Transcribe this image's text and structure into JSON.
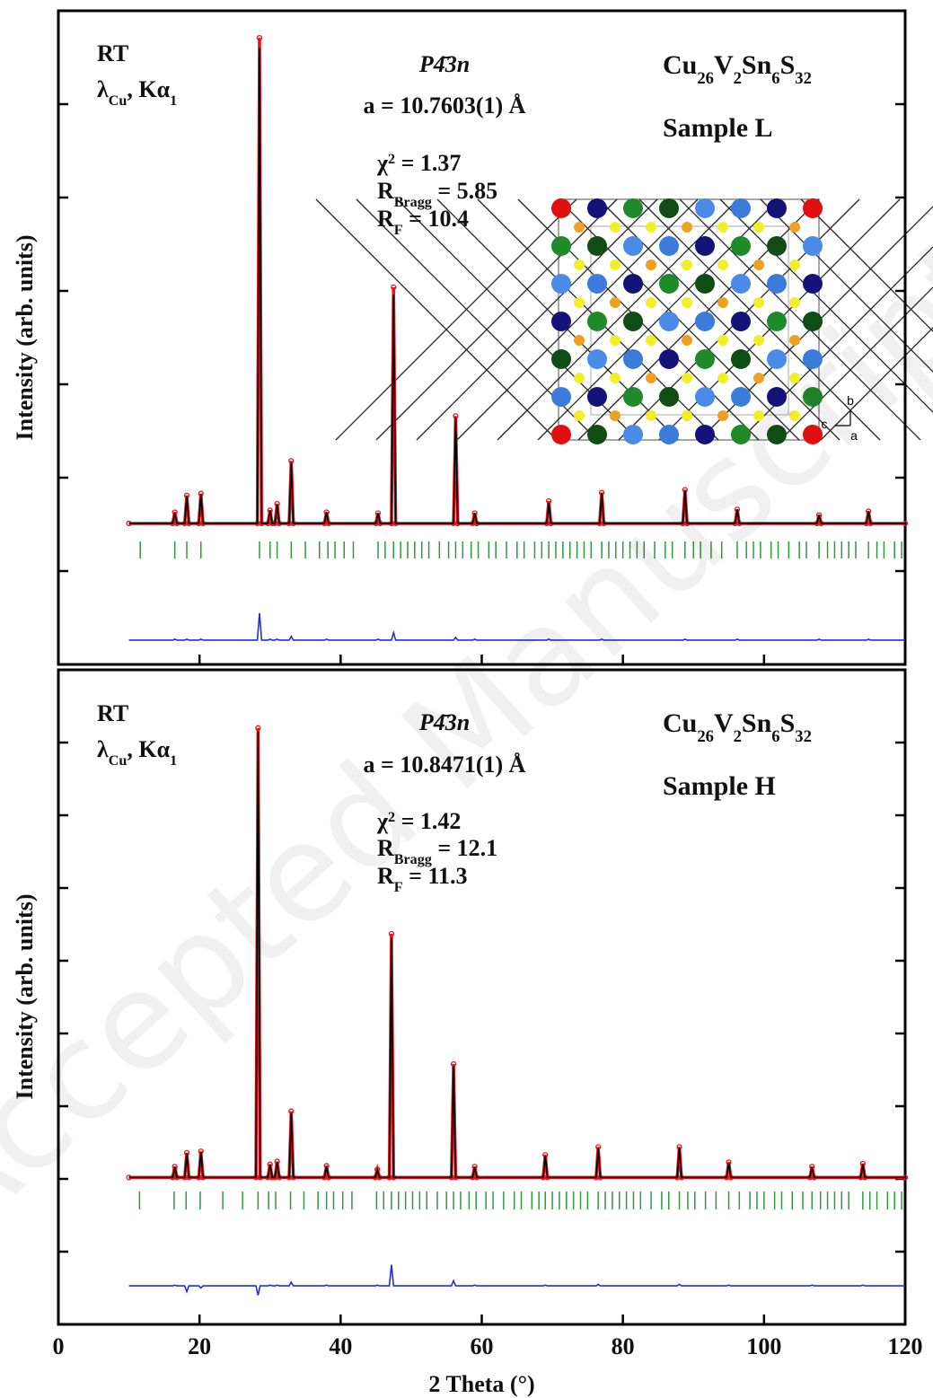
{
  "watermark": "Accepted Manuscript",
  "chart_data": [
    {
      "type": "line",
      "ylabel": "Intensity (arb. units)",
      "xlim": [
        0,
        120
      ],
      "ylim": [
        0,
        7
      ],
      "yticks": [
        1,
        2,
        3,
        4,
        5,
        6
      ],
      "x": [
        10,
        16.2,
        16.5,
        16.8,
        17.9,
        18.2,
        18.5,
        19.9,
        20.2,
        20.5,
        28.2,
        28.5,
        28.8,
        29.7,
        30,
        30.3,
        30.7,
        31,
        31.3,
        32.7,
        33,
        33.3,
        37.7,
        38,
        38.3,
        45,
        45.3,
        45.6,
        47.2,
        47.5,
        47.8,
        56,
        56.3,
        56.6,
        58.7,
        59,
        59.3,
        69.2,
        69.5,
        69.8,
        76.7,
        77,
        77.3,
        88.5,
        88.8,
        89.1,
        95.9,
        96.2,
        96.5,
        107.5,
        107.8,
        108.1,
        114.5,
        114.8,
        115.1,
        120
      ],
      "series": [
        {
          "marker": "circle",
          "color": "#e8141b",
          "values": [
            1.51,
            1.51,
            1.63,
            1.51,
            1.51,
            1.81,
            1.51,
            1.51,
            1.83,
            1.51,
            1.51,
            6.71,
            1.51,
            1.51,
            1.65,
            1.51,
            1.51,
            1.72,
            1.51,
            1.51,
            2.18,
            1.51,
            1.51,
            1.63,
            1.51,
            1.51,
            1.62,
            1.51,
            1.51,
            4.04,
            1.51,
            1.51,
            2.66,
            1.51,
            1.51,
            1.62,
            1.51,
            1.51,
            1.75,
            1.51,
            1.51,
            1.84,
            1.51,
            1.51,
            1.87,
            1.51,
            1.51,
            1.66,
            1.51,
            1.51,
            1.6,
            1.51,
            1.51,
            1.64,
            1.51,
            1.51
          ]
        },
        {
          "color": "#000000",
          "values": [
            1.51,
            1.51,
            1.62,
            1.51,
            1.51,
            1.8,
            1.51,
            1.51,
            1.82,
            1.51,
            1.51,
            6.6,
            1.51,
            1.51,
            1.65,
            1.51,
            1.51,
            1.71,
            1.51,
            1.51,
            2.16,
            1.51,
            1.51,
            1.63,
            1.51,
            1.51,
            1.62,
            1.51,
            1.51,
            3.96,
            1.51,
            1.51,
            2.64,
            1.51,
            1.51,
            1.62,
            1.51,
            1.51,
            1.73,
            1.51,
            1.51,
            1.83,
            1.51,
            1.51,
            1.86,
            1.51,
            1.51,
            1.66,
            1.51,
            1.51,
            1.6,
            1.51,
            1.51,
            1.64,
            1.51,
            1.51
          ]
        },
        {
          "color": "#1f2fe0",
          "values": [
            0.26,
            0.26,
            0.27,
            0.26,
            0.26,
            0.27,
            0.26,
            0.26,
            0.27,
            0.26,
            0.26,
            0.55,
            0.26,
            0.26,
            0.27,
            0.26,
            0.26,
            0.27,
            0.26,
            0.26,
            0.3,
            0.26,
            0.26,
            0.27,
            0.26,
            0.26,
            0.27,
            0.26,
            0.26,
            0.34,
            0.26,
            0.26,
            0.29,
            0.26,
            0.26,
            0.27,
            0.26,
            0.26,
            0.27,
            0.26,
            0.26,
            0.27,
            0.26,
            0.26,
            0.27,
            0.26,
            0.26,
            0.27,
            0.26,
            0.26,
            0.27,
            0.26,
            0.26,
            0.27,
            0.26,
            0.26
          ]
        }
      ],
      "bragg_color": "#2e9a3a",
      "bragg_positions": [
        11.6,
        16.5,
        18.2,
        20.2,
        28.5,
        30,
        31,
        33,
        35,
        37,
        38.2,
        39.2,
        40.5,
        41.8,
        45.3,
        46.3,
        47.5,
        48.5,
        49.5,
        50.5,
        51.5,
        52.5,
        54,
        55.3,
        56.3,
        57.3,
        58.5,
        59.5,
        61,
        62,
        63.5,
        65,
        66,
        67.5,
        68.5,
        69.5,
        70.5,
        71.5,
        72.5,
        73.5,
        74.5,
        75.5,
        77,
        78,
        79,
        80,
        81,
        82,
        83,
        84.5,
        86,
        87,
        88.8,
        90,
        91,
        92.5,
        94,
        96.2,
        97.5,
        98.5,
        99.5,
        101,
        102,
        103.5,
        105,
        106,
        107.8,
        109,
        110,
        111,
        112,
        113,
        114.8,
        116,
        117,
        118.5,
        119.5
      ],
      "annotations": {
        "rt": "RT",
        "radiation": [
          {
            "t": "λ"
          },
          {
            "t": "Cu",
            "sub": true
          },
          {
            "t": ", Kα"
          },
          {
            "t": "1",
            "sub": true
          }
        ],
        "space_group": "P4̄3n",
        "lattice": "a = 10.7603(1) Å",
        "chi2": [
          {
            "t": "χ"
          },
          {
            "t": "2",
            "sup": true
          },
          {
            "t": " = 1.37"
          }
        ],
        "rbragg": [
          {
            "t": "R"
          },
          {
            "t": "Bragg",
            "sub": true
          },
          {
            "t": " = 5.85"
          }
        ],
        "rf": [
          {
            "t": "R"
          },
          {
            "t": "F",
            "sub": true
          },
          {
            "t": " = 10.4"
          }
        ],
        "formula": [
          {
            "t": "Cu"
          },
          {
            "t": "26",
            "sub": true
          },
          {
            "t": "V"
          },
          {
            "t": "2",
            "sub": true
          },
          {
            "t": "Sn"
          },
          {
            "t": "6",
            "sub": true
          },
          {
            "t": "S"
          },
          {
            "t": "32",
            "sub": true
          }
        ],
        "sample": "Sample L"
      },
      "inset_axes": [
        "b",
        "c",
        "a"
      ]
    },
    {
      "type": "line",
      "ylabel": "Intensity (arb. units)",
      "xlabel": "2 Theta (°)",
      "xlim": [
        0,
        120
      ],
      "ylim": [
        0,
        9
      ],
      "yticks": [
        1,
        2,
        3,
        4,
        5,
        6,
        7,
        8
      ],
      "xticks": [
        0,
        20,
        40,
        60,
        80,
        100,
        120
      ],
      "x": [
        10,
        16.2,
        16.5,
        16.8,
        17.9,
        18.2,
        18.5,
        19.9,
        20.2,
        20.5,
        28,
        28.3,
        28.6,
        29.7,
        30,
        30.3,
        30.7,
        31,
        31.3,
        32.7,
        33,
        33.3,
        37.7,
        38,
        38.3,
        44.9,
        45.2,
        45.5,
        46.9,
        47.2,
        47.5,
        55.7,
        56,
        56.3,
        58.7,
        59,
        59.3,
        68.7,
        69,
        69.3,
        76.2,
        76.5,
        76.8,
        87.7,
        88,
        88.3,
        94.7,
        95,
        95.3,
        106.5,
        106.8,
        107.1,
        113.7,
        114,
        114.3,
        120
      ],
      "series": [
        {
          "marker": "circle",
          "color": "#e8141b",
          "values": [
            2.02,
            2.02,
            2.17,
            2.02,
            2.02,
            2.36,
            2.02,
            2.02,
            2.38,
            2.02,
            2.02,
            8.2,
            2.02,
            2.02,
            2.2,
            2.02,
            2.02,
            2.24,
            2.02,
            2.02,
            2.93,
            2.02,
            2.02,
            2.18,
            2.02,
            2.02,
            2.13,
            2.02,
            2.02,
            5.37,
            2.02,
            2.02,
            3.58,
            2.02,
            2.02,
            2.17,
            2.02,
            2.02,
            2.33,
            2.02,
            2.02,
            2.44,
            2.02,
            2.02,
            2.44,
            2.02,
            2.02,
            2.23,
            2.02,
            2.02,
            2.17,
            2.02,
            2.02,
            2.21,
            2.02,
            2.02
          ]
        },
        {
          "color": "#000000",
          "values": [
            2.02,
            2.02,
            2.16,
            2.02,
            2.02,
            2.35,
            2.02,
            2.02,
            2.37,
            2.02,
            2.02,
            8.15,
            2.02,
            2.02,
            2.2,
            2.02,
            2.02,
            2.23,
            2.02,
            2.02,
            2.9,
            2.02,
            2.02,
            2.17,
            2.02,
            2.02,
            2.12,
            2.02,
            2.02,
            5.32,
            2.02,
            2.02,
            3.55,
            2.02,
            2.02,
            2.16,
            2.02,
            2.02,
            2.32,
            2.02,
            2.02,
            2.42,
            2.02,
            2.02,
            2.43,
            2.02,
            2.02,
            2.22,
            2.02,
            2.02,
            2.16,
            2.02,
            2.02,
            2.2,
            2.02,
            2.02
          ]
        },
        {
          "color": "#1f2fe0",
          "values": [
            0.53,
            0.53,
            0.54,
            0.53,
            0.53,
            0.45,
            0.53,
            0.53,
            0.5,
            0.53,
            0.53,
            0.4,
            0.53,
            0.53,
            0.54,
            0.53,
            0.53,
            0.54,
            0.53,
            0.53,
            0.58,
            0.53,
            0.53,
            0.54,
            0.53,
            0.53,
            0.54,
            0.53,
            0.53,
            0.82,
            0.53,
            0.53,
            0.6,
            0.53,
            0.53,
            0.54,
            0.53,
            0.53,
            0.54,
            0.53,
            0.53,
            0.55,
            0.53,
            0.53,
            0.55,
            0.53,
            0.53,
            0.54,
            0.53,
            0.53,
            0.54,
            0.53,
            0.53,
            0.54,
            0.53,
            0.53
          ]
        }
      ],
      "bragg_color": "#2e9a3a",
      "bragg_positions": [
        11.5,
        16.4,
        18.1,
        20.1,
        23.3,
        26.1,
        28.3,
        29.8,
        30.8,
        32.9,
        34.8,
        36.8,
        38,
        39,
        40.3,
        41.6,
        45.1,
        46.1,
        47.2,
        48.2,
        49.2,
        50.2,
        51.2,
        52.2,
        53.7,
        55,
        56,
        57,
        58.2,
        59.2,
        60.6,
        61.6,
        63.1,
        64.6,
        65.6,
        67.1,
        68.1,
        69,
        70,
        71,
        72,
        73,
        74,
        75,
        76.5,
        77.5,
        78.5,
        79.5,
        80.5,
        81.5,
        82.5,
        84,
        85.5,
        86.5,
        88,
        89.2,
        90.2,
        91.7,
        93.2,
        95,
        96.5,
        98,
        99,
        100,
        101.5,
        102.5,
        104,
        105.5,
        106.8,
        108,
        109,
        110,
        111,
        112,
        114,
        115,
        116,
        117.5,
        118.5,
        119.5
      ],
      "annotations": {
        "rt": "RT",
        "radiation": [
          {
            "t": "λ"
          },
          {
            "t": "Cu",
            "sub": true
          },
          {
            "t": ", Kα"
          },
          {
            "t": "1",
            "sub": true
          }
        ],
        "space_group": "P4̄3n",
        "lattice": "a = 10.8471(1) Å",
        "chi2": [
          {
            "t": "χ"
          },
          {
            "t": "2",
            "sup": true
          },
          {
            "t": " = 1.42"
          }
        ],
        "rbragg": [
          {
            "t": "R"
          },
          {
            "t": "Bragg",
            "sub": true
          },
          {
            "t": " = 12.1"
          }
        ],
        "rf": [
          {
            "t": "R"
          },
          {
            "t": "F",
            "sub": true
          },
          {
            "t": " = 11.3"
          }
        ],
        "formula": [
          {
            "t": "Cu"
          },
          {
            "t": "26",
            "sub": true
          },
          {
            "t": "V"
          },
          {
            "t": "2",
            "sub": true
          },
          {
            "t": "Sn"
          },
          {
            "t": "6",
            "sub": true
          },
          {
            "t": "S"
          },
          {
            "t": "32",
            "sub": true
          }
        ],
        "sample": "Sample H"
      }
    }
  ]
}
